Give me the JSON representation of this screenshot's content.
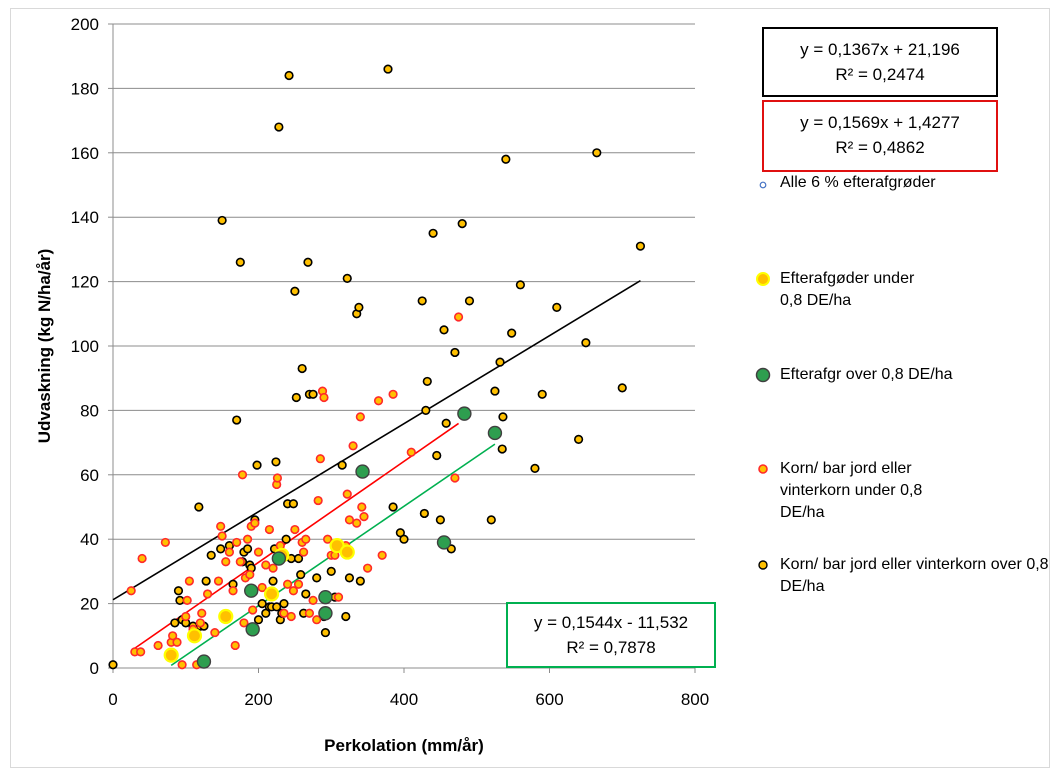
{
  "chart_data": {
    "type": "scatter",
    "xlabel": "Perkolation (mm/år)",
    "ylabel": "Udvaskning (kg N/ha/år)",
    "xlim": [
      0,
      800
    ],
    "ylim": [
      0,
      200
    ],
    "xticks": [
      "0",
      "200",
      "400",
      "600",
      "800"
    ],
    "yticks": [
      "0",
      "20",
      "40",
      "60",
      "80",
      "100",
      "120",
      "140",
      "160",
      "180",
      "200"
    ],
    "grid": "horizontal",
    "legend_position": "right",
    "series": [
      {
        "name": "Alle 6 % efterafgrøder",
        "marker": "small-open-circle",
        "color": "#4472c4",
        "points": []
      },
      {
        "name": "Efterafgøder under 0,8 DE/ha",
        "marker": "circle",
        "fill": "#ffc000",
        "stroke": "#ffff00",
        "points": [
          [
            80,
            4
          ],
          [
            112,
            10
          ],
          [
            155,
            16
          ],
          [
            218,
            23
          ],
          [
            232,
            35
          ],
          [
            308,
            38
          ],
          [
            322,
            36
          ]
        ]
      },
      {
        "name": "Efterafgr over 0,8 DE/ha",
        "marker": "circle",
        "fill": "#2e9e4f",
        "stroke": "#404040",
        "points": [
          [
            125,
            2
          ],
          [
            192,
            12
          ],
          [
            190,
            24
          ],
          [
            228,
            34
          ],
          [
            292,
            17
          ],
          [
            292,
            22
          ],
          [
            343,
            61
          ],
          [
            455,
            39
          ],
          [
            483,
            79
          ],
          [
            525,
            73
          ]
        ]
      },
      {
        "name": "Korn/ bar jord eller vinterkorn under 0,8 DE/ha",
        "marker": "circle",
        "fill": "#ffc000",
        "stroke": "#ff2a2a",
        "points": [
          [
            25,
            24
          ],
          [
            30,
            5
          ],
          [
            38,
            5
          ],
          [
            40,
            34
          ],
          [
            62,
            7
          ],
          [
            72,
            39
          ],
          [
            80,
            8
          ],
          [
            82,
            10
          ],
          [
            88,
            8
          ],
          [
            95,
            1
          ],
          [
            100,
            16
          ],
          [
            102,
            21
          ],
          [
            105,
            27
          ],
          [
            110,
            12
          ],
          [
            115,
            1
          ],
          [
            120,
            14
          ],
          [
            122,
            17
          ],
          [
            130,
            23
          ],
          [
            140,
            11
          ],
          [
            145,
            27
          ],
          [
            148,
            44
          ],
          [
            150,
            41
          ],
          [
            155,
            33
          ],
          [
            160,
            36
          ],
          [
            165,
            24
          ],
          [
            168,
            7
          ],
          [
            170,
            39
          ],
          [
            175,
            33
          ],
          [
            178,
            60
          ],
          [
            180,
            14
          ],
          [
            182,
            28
          ],
          [
            185,
            40
          ],
          [
            188,
            29
          ],
          [
            190,
            44
          ],
          [
            192,
            18
          ],
          [
            195,
            45
          ],
          [
            200,
            36
          ],
          [
            205,
            25
          ],
          [
            210,
            32
          ],
          [
            215,
            43
          ],
          [
            220,
            31
          ],
          [
            225,
            57
          ],
          [
            226,
            59
          ],
          [
            230,
            38
          ],
          [
            235,
            17
          ],
          [
            240,
            26
          ],
          [
            245,
            16
          ],
          [
            248,
            24
          ],
          [
            250,
            43
          ],
          [
            255,
            26
          ],
          [
            260,
            39
          ],
          [
            262,
            36
          ],
          [
            265,
            40
          ],
          [
            270,
            17
          ],
          [
            275,
            21
          ],
          [
            280,
            15
          ],
          [
            282,
            52
          ],
          [
            285,
            65
          ],
          [
            288,
            86
          ],
          [
            290,
            84
          ],
          [
            295,
            40
          ],
          [
            300,
            35
          ],
          [
            305,
            35
          ],
          [
            310,
            22
          ],
          [
            320,
            38
          ],
          [
            322,
            54
          ],
          [
            325,
            46
          ],
          [
            330,
            69
          ],
          [
            335,
            45
          ],
          [
            340,
            78
          ],
          [
            342,
            50
          ],
          [
            345,
            47
          ],
          [
            350,
            31
          ],
          [
            365,
            83
          ],
          [
            370,
            35
          ],
          [
            385,
            85
          ],
          [
            410,
            67
          ],
          [
            470,
            59
          ],
          [
            475,
            109
          ]
        ]
      },
      {
        "name": "Korn/ bar jord eller vinterkorn over 0,8 DE/ha",
        "marker": "circle",
        "fill": "#ffc000",
        "stroke": "#000000",
        "points": [
          [
            0,
            1
          ],
          [
            85,
            14
          ],
          [
            90,
            24
          ],
          [
            92,
            21
          ],
          [
            95,
            15
          ],
          [
            100,
            14
          ],
          [
            110,
            13
          ],
          [
            118,
            50
          ],
          [
            120,
            13
          ],
          [
            125,
            13
          ],
          [
            128,
            27
          ],
          [
            135,
            35
          ],
          [
            148,
            37
          ],
          [
            150,
            139
          ],
          [
            160,
            38
          ],
          [
            165,
            26
          ],
          [
            170,
            77
          ],
          [
            175,
            126
          ],
          [
            178,
            33
          ],
          [
            180,
            36
          ],
          [
            185,
            37
          ],
          [
            188,
            32
          ],
          [
            190,
            31
          ],
          [
            195,
            46
          ],
          [
            198,
            63
          ],
          [
            200,
            15
          ],
          [
            205,
            20
          ],
          [
            210,
            17
          ],
          [
            215,
            19
          ],
          [
            218,
            19
          ],
          [
            220,
            27
          ],
          [
            222,
            37
          ],
          [
            224,
            64
          ],
          [
            225,
            19
          ],
          [
            228,
            168
          ],
          [
            230,
            15
          ],
          [
            232,
            17
          ],
          [
            235,
            20
          ],
          [
            238,
            40
          ],
          [
            240,
            51
          ],
          [
            242,
            184
          ],
          [
            245,
            34
          ],
          [
            248,
            51
          ],
          [
            250,
            117
          ],
          [
            252,
            84
          ],
          [
            255,
            34
          ],
          [
            258,
            29
          ],
          [
            260,
            93
          ],
          [
            262,
            17
          ],
          [
            265,
            23
          ],
          [
            268,
            126
          ],
          [
            270,
            85
          ],
          [
            275,
            85
          ],
          [
            280,
            28
          ],
          [
            290,
            16
          ],
          [
            292,
            11
          ],
          [
            300,
            30
          ],
          [
            305,
            22
          ],
          [
            315,
            63
          ],
          [
            320,
            16
          ],
          [
            322,
            121
          ],
          [
            325,
            28
          ],
          [
            335,
            110
          ],
          [
            338,
            112
          ],
          [
            340,
            27
          ],
          [
            378,
            186
          ],
          [
            385,
            50
          ],
          [
            395,
            42
          ],
          [
            400,
            40
          ],
          [
            425,
            114
          ],
          [
            428,
            48
          ],
          [
            430,
            80
          ],
          [
            432,
            89
          ],
          [
            440,
            135
          ],
          [
            445,
            66
          ],
          [
            450,
            46
          ],
          [
            455,
            105
          ],
          [
            458,
            76
          ],
          [
            465,
            37
          ],
          [
            470,
            98
          ],
          [
            480,
            138
          ],
          [
            490,
            114
          ],
          [
            520,
            46
          ],
          [
            525,
            86
          ],
          [
            532,
            95
          ],
          [
            535,
            68
          ],
          [
            536,
            78
          ],
          [
            540,
            158
          ],
          [
            548,
            104
          ],
          [
            560,
            119
          ],
          [
            580,
            62
          ],
          [
            590,
            85
          ],
          [
            610,
            112
          ],
          [
            640,
            71
          ],
          [
            650,
            101
          ],
          [
            665,
            160
          ],
          [
            700,
            87
          ],
          [
            725,
            131
          ]
        ]
      }
    ],
    "trendlines": [
      {
        "series": "all",
        "color": "#000000",
        "x": [
          0,
          725
        ],
        "slope": 0.1367,
        "intercept": 21.196,
        "equation": "y = 0,1367x + 21,196",
        "r2": "R² = 0,2474"
      },
      {
        "series": "red",
        "color": "#ff0000",
        "x": [
          25,
          475
        ],
        "slope": 0.1569,
        "intercept": 1.4277,
        "equation": "y = 0,1569x + 1,4277",
        "r2": "R² = 0,4862"
      },
      {
        "series": "green",
        "color": "#00b050",
        "x": [
          80,
          525
        ],
        "slope": 0.1544,
        "intercept": -11.532,
        "equation": "y = 0,1544x - 11,532",
        "r2": "R² = 0,7878"
      }
    ]
  },
  "legend": [
    "Alle 6 % efterafgrøder",
    "Efterafgøder under 0,8 DE/ha",
    "Efterafgr over 0,8 DE/ha",
    "Korn/ bar jord eller vinterkorn under 0,8 DE/ha",
    "Korn/ bar jord eller vinterkorn over 0,8 DE/ha"
  ],
  "equations": {
    "black": {
      "line1": "y = 0,1367x + 21,196",
      "line2": "R² = 0,2474",
      "color": "#000000"
    },
    "red": {
      "line1": "y = 0,1569x + 1,4277",
      "line2": "R² = 0,4862",
      "color": "#ff0000"
    },
    "green": {
      "line1": "y = 0,1544x - 11,532",
      "line2": "R² = 0,7878",
      "color": "#00b050"
    }
  }
}
